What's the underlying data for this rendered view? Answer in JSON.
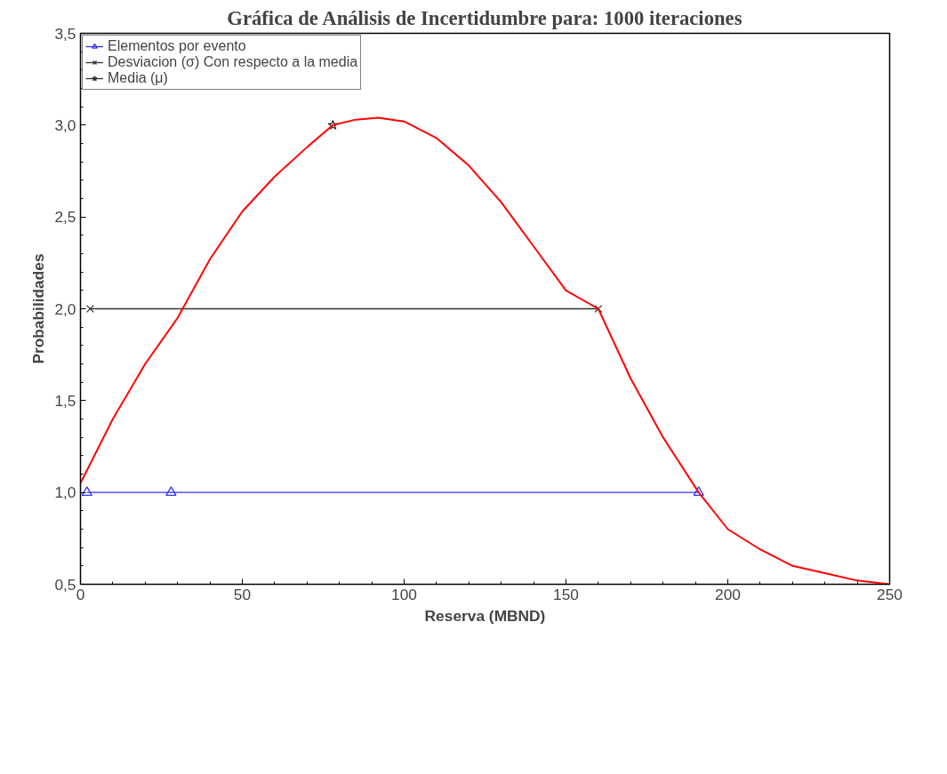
{
  "chart_data": {
    "type": "line",
    "title": "Gráfica de Análisis de Incertidumbre para: 1000 iteraciones",
    "xlabel": "Reserva (MBND)",
    "ylabel": "Probabilidades",
    "xlim": [
      0,
      250
    ],
    "xticks": [
      0,
      50,
      100,
      150,
      200,
      250
    ],
    "ylim": [
      0.5,
      3.5
    ],
    "yticks": [
      {
        "value": 0.5,
        "label": "0,5"
      },
      {
        "value": 1.0,
        "label": "1,0"
      },
      {
        "value": 1.5,
        "label": "1,5"
      },
      {
        "value": 2.0,
        "label": "2,0"
      },
      {
        "value": 2.5,
        "label": "2,5"
      },
      {
        "value": 3.0,
        "label": "3,0"
      },
      {
        "value": 3.5,
        "label": "3,5"
      }
    ],
    "grid": false,
    "legend": "top left",
    "series": [
      {
        "name": "Elementos por evento",
        "color": "#3333ff",
        "marker": "triangle",
        "x": [
          2,
          28,
          191
        ],
        "values": [
          1.0,
          1.0,
          1.0
        ]
      },
      {
        "name": "Desviacion (σ) Con respecto a la media",
        "color": "#333333",
        "marker": "cross",
        "x": [
          3,
          160
        ],
        "values": [
          2.0,
          2.0
        ]
      },
      {
        "name": "Media (μ)",
        "color": "#333333",
        "marker": "star",
        "x": [
          78
        ],
        "values": [
          3.0
        ]
      },
      {
        "color": "#ff0000",
        "marker": "none",
        "x": [
          0,
          10,
          20,
          30,
          40,
          50,
          60,
          70,
          78,
          85,
          92,
          100,
          110,
          120,
          130,
          140,
          150,
          160,
          170,
          180,
          191,
          200,
          210,
          220,
          230,
          240,
          250
        ],
        "values": [
          1.05,
          1.4,
          1.7,
          1.95,
          2.27,
          2.53,
          2.72,
          2.88,
          3.0,
          3.03,
          3.04,
          3.02,
          2.93,
          2.78,
          2.58,
          2.34,
          2.1,
          2.0,
          1.62,
          1.3,
          1.0,
          0.8,
          0.69,
          0.6,
          0.56,
          0.52,
          0.5
        ]
      }
    ]
  }
}
